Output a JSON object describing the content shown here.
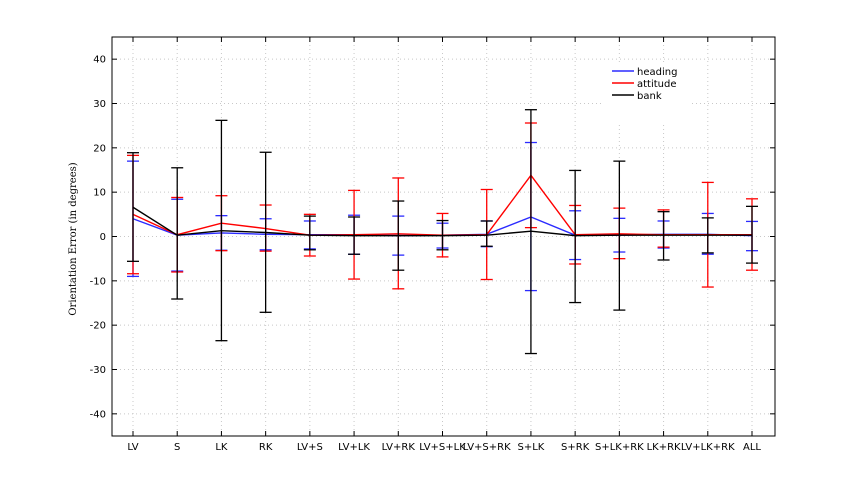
{
  "chart_data": {
    "type": "line",
    "title": "",
    "xlabel": "",
    "ylabel": "Orientation Error (in degrees)",
    "ylim": [
      -45,
      45
    ],
    "yticks": [
      -40,
      -30,
      -20,
      -10,
      0,
      10,
      20,
      30,
      40
    ],
    "grid": true,
    "legend_position": "top-right",
    "categories": [
      "LV",
      "S",
      "LK",
      "RK",
      "LV+S",
      "LV+LK",
      "LV+RK",
      "LV+S+LK",
      "LV+S+RK",
      "S+LK",
      "S+RK",
      "S+LK+RK",
      "LK+RK",
      "LV+LK+RK",
      "ALL"
    ],
    "series": [
      {
        "name": "heading",
        "color": "#2b2bff",
        "values": [
          4.0,
          0.3,
          0.8,
          0.5,
          0.4,
          0.4,
          0.2,
          0.3,
          0.5,
          4.4,
          0.3,
          0.3,
          0.5,
          0.5,
          0.2
        ],
        "upper": [
          17.0,
          8.4,
          4.7,
          4.0,
          3.5,
          4.8,
          4.6,
          3.0,
          3.5,
          21.2,
          5.8,
          4.1,
          3.5,
          5.2,
          3.4
        ],
        "lower": [
          -9.0,
          -7.8,
          -3.1,
          -3.0,
          -2.8,
          -4.0,
          -4.2,
          -2.6,
          -2.3,
          -12.2,
          -5.2,
          -3.5,
          -2.6,
          -4.0,
          -3.2
        ]
      },
      {
        "name": "attitude",
        "color": "#ff0000",
        "values": [
          5.0,
          0.4,
          3.0,
          1.8,
          0.3,
          0.4,
          0.6,
          0.3,
          0.4,
          13.8,
          0.4,
          0.6,
          0.4,
          0.4,
          0.4
        ],
        "upper": [
          18.3,
          8.8,
          9.2,
          7.1,
          5.0,
          10.4,
          13.2,
          5.2,
          10.6,
          25.6,
          7.0,
          6.4,
          6.0,
          12.2,
          8.5
        ],
        "lower": [
          -8.4,
          -8.0,
          -3.2,
          -3.3,
          -4.4,
          -9.6,
          -11.8,
          -4.6,
          -9.7,
          2.0,
          -6.2,
          -5.0,
          -2.4,
          -11.4,
          -7.6
        ]
      },
      {
        "name": "bank",
        "color": "#000000",
        "values": [
          6.6,
          0.3,
          1.3,
          0.9,
          0.3,
          0.2,
          0.2,
          0.2,
          0.3,
          1.2,
          0.2,
          0.3,
          0.3,
          0.3,
          0.3
        ],
        "upper": [
          18.9,
          15.5,
          26.2,
          19.0,
          4.6,
          4.4,
          8.0,
          3.6,
          3.5,
          28.6,
          14.9,
          17.0,
          5.6,
          4.2,
          6.8
        ],
        "lower": [
          -5.6,
          -14.1,
          -23.5,
          -17.1,
          -3.0,
          -4.0,
          -7.6,
          -3.0,
          -2.2,
          -26.4,
          -14.9,
          -16.6,
          -5.3,
          -3.7,
          -6.0
        ]
      }
    ]
  }
}
